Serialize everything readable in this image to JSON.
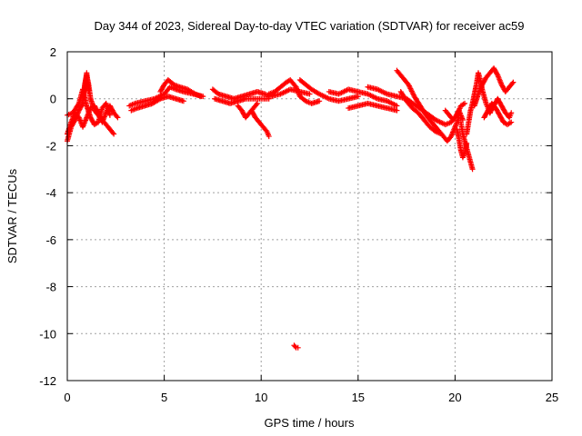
{
  "chart_data": {
    "type": "scatter",
    "title": "Day 344 of 2023, Sidereal Day-to-day VTEC variation (SDTVAR) for receiver ac59",
    "xlabel": "GPS time / hours",
    "ylabel": "SDTVAR / TECUs",
    "xlim": [
      0,
      25
    ],
    "ylim": [
      -12,
      2
    ],
    "xticks": [
      0,
      5,
      10,
      15,
      20,
      25
    ],
    "yticks": [
      -12,
      -10,
      -8,
      -6,
      -4,
      -2,
      0,
      2
    ],
    "xtick_labels": [
      "0",
      "5",
      "10",
      "15",
      "20",
      "25"
    ],
    "ytick_labels": [
      "-12",
      "-10",
      "-8",
      "-6",
      "-4",
      "-2",
      "0",
      "2"
    ],
    "grid": true,
    "marker": "plus",
    "color": "#ff0000",
    "series": [
      {
        "name": "SDTVAR",
        "tracks": [
          [
            [
              0.0,
              -1.8
            ],
            [
              0.2,
              -1.2
            ],
            [
              0.4,
              -0.9
            ],
            [
              0.6,
              -0.5
            ],
            [
              0.8,
              -0.2
            ],
            [
              0.9,
              0.6
            ],
            [
              1.0,
              1.0
            ],
            [
              1.1,
              0.6
            ],
            [
              1.2,
              0.0
            ],
            [
              1.4,
              -0.5
            ],
            [
              1.6,
              -0.7
            ],
            [
              1.8,
              -0.9
            ],
            [
              2.0,
              -1.1
            ],
            [
              2.2,
              -1.3
            ],
            [
              2.4,
              -1.5
            ]
          ],
          [
            [
              0.0,
              -1.5
            ],
            [
              0.2,
              -1.0
            ],
            [
              0.4,
              -0.6
            ],
            [
              0.6,
              -0.8
            ],
            [
              0.8,
              -1.2
            ],
            [
              1.0,
              -0.8
            ],
            [
              1.2,
              -0.4
            ],
            [
              1.4,
              -0.3
            ],
            [
              1.6,
              -0.6
            ],
            [
              1.8,
              -1.0
            ],
            [
              2.0,
              -0.6
            ],
            [
              2.2,
              -0.3
            ],
            [
              2.4,
              -0.6
            ],
            [
              2.6,
              -0.8
            ]
          ],
          [
            [
              0.0,
              -0.7
            ],
            [
              0.3,
              -0.6
            ],
            [
              0.6,
              -0.2
            ],
            [
              0.8,
              0.4
            ],
            [
              1.0,
              -0.3
            ],
            [
              1.2,
              -0.8
            ],
            [
              1.4,
              -1.1
            ],
            [
              1.6,
              -1.0
            ],
            [
              1.8,
              -0.4
            ],
            [
              2.0,
              -0.2
            ],
            [
              2.2,
              -0.7
            ]
          ],
          [
            [
              0.8,
              -0.2
            ],
            [
              0.85,
              0.2
            ],
            [
              0.9,
              0.5
            ],
            [
              0.95,
              0.8
            ],
            [
              1.0,
              1.1
            ],
            [
              1.05,
              0.7
            ],
            [
              1.1,
              0.3
            ]
          ],
          [
            [
              3.2,
              -0.3
            ],
            [
              3.5,
              -0.2
            ],
            [
              4.0,
              -0.1
            ],
            [
              4.5,
              0.0
            ],
            [
              5.0,
              0.2
            ],
            [
              5.3,
              0.5
            ],
            [
              5.6,
              0.4
            ],
            [
              6.0,
              0.3
            ],
            [
              6.5,
              0.2
            ],
            [
              7.0,
              0.1
            ]
          ],
          [
            [
              3.3,
              -0.5
            ],
            [
              3.6,
              -0.4
            ],
            [
              4.0,
              -0.3
            ],
            [
              4.4,
              -0.2
            ],
            [
              4.8,
              0.0
            ],
            [
              5.2,
              0.1
            ],
            [
              5.6,
              0.0
            ],
            [
              6.0,
              -0.1
            ]
          ],
          [
            [
              4.8,
              0.3
            ],
            [
              5.0,
              0.6
            ],
            [
              5.2,
              0.8
            ],
            [
              5.5,
              0.6
            ],
            [
              5.8,
              0.5
            ],
            [
              6.2,
              0.4
            ],
            [
              6.6,
              0.2
            ],
            [
              6.9,
              0.1
            ]
          ],
          [
            [
              7.5,
              0.4
            ],
            [
              7.8,
              0.2
            ],
            [
              8.2,
              0.1
            ],
            [
              8.6,
              0.0
            ],
            [
              9.0,
              0.1
            ],
            [
              9.4,
              0.2
            ],
            [
              9.8,
              0.3
            ],
            [
              10.2,
              0.2
            ],
            [
              10.5,
              0.1
            ],
            [
              11.0,
              0.2
            ],
            [
              11.5,
              0.4
            ],
            [
              12.0,
              0.3
            ],
            [
              12.5,
              0.2
            ]
          ],
          [
            [
              7.6,
              0.0
            ],
            [
              8.0,
              -0.1
            ],
            [
              8.4,
              -0.2
            ],
            [
              8.8,
              -0.1
            ],
            [
              9.2,
              0.0
            ],
            [
              9.6,
              0.0
            ],
            [
              10.0,
              0.0
            ],
            [
              10.4,
              0.0
            ]
          ],
          [
            [
              8.8,
              -0.3
            ],
            [
              9.0,
              -0.5
            ],
            [
              9.2,
              -0.8
            ],
            [
              9.4,
              -0.6
            ],
            [
              9.6,
              -0.4
            ],
            [
              9.8,
              -0.2
            ]
          ],
          [
            [
              9.5,
              -0.5
            ],
            [
              9.7,
              -0.8
            ],
            [
              9.9,
              -1.0
            ],
            [
              10.1,
              -1.2
            ],
            [
              10.3,
              -1.4
            ],
            [
              10.4,
              -1.6
            ]
          ],
          [
            [
              10.4,
              0.2
            ],
            [
              10.7,
              0.3
            ],
            [
              11.0,
              0.5
            ],
            [
              11.3,
              0.7
            ],
            [
              11.5,
              0.8
            ],
            [
              11.8,
              0.5
            ],
            [
              12.0,
              0.1
            ],
            [
              12.3,
              -0.1
            ],
            [
              12.6,
              -0.2
            ],
            [
              13.0,
              -0.1
            ]
          ],
          [
            [
              12.0,
              0.8
            ],
            [
              12.3,
              0.6
            ],
            [
              12.6,
              0.4
            ],
            [
              13.0,
              0.2
            ],
            [
              13.5,
              0.0
            ],
            [
              14.0,
              -0.1
            ],
            [
              14.5,
              0.0
            ],
            [
              15.0,
              0.1
            ]
          ],
          [
            [
              13.5,
              0.3
            ],
            [
              14.0,
              0.2
            ],
            [
              14.5,
              0.4
            ],
            [
              15.0,
              0.3
            ],
            [
              15.5,
              0.2
            ],
            [
              16.0,
              0.0
            ],
            [
              16.5,
              -0.1
            ],
            [
              17.0,
              -0.3
            ]
          ],
          [
            [
              14.5,
              -0.4
            ],
            [
              15.0,
              -0.3
            ],
            [
              15.5,
              -0.2
            ],
            [
              16.0,
              -0.3
            ],
            [
              16.5,
              -0.4
            ],
            [
              17.0,
              -0.5
            ]
          ],
          [
            [
              15.5,
              0.5
            ],
            [
              16.0,
              0.4
            ],
            [
              16.5,
              0.2
            ],
            [
              17.0,
              0.1
            ],
            [
              17.5,
              0.0
            ],
            [
              18.0,
              -0.3
            ],
            [
              18.5,
              -0.6
            ],
            [
              19.0,
              -0.9
            ],
            [
              19.5,
              -1.1
            ],
            [
              19.8,
              -1.0
            ],
            [
              20.0,
              -0.8
            ],
            [
              20.2,
              -0.5
            ],
            [
              20.4,
              -0.9
            ]
          ],
          [
            [
              17.0,
              1.2
            ],
            [
              17.3,
              0.9
            ],
            [
              17.6,
              0.6
            ],
            [
              17.9,
              0.1
            ],
            [
              18.2,
              -0.3
            ],
            [
              18.5,
              -0.7
            ],
            [
              18.8,
              -1.0
            ],
            [
              19.1,
              -1.3
            ],
            [
              19.4,
              -1.6
            ],
            [
              19.6,
              -1.8
            ],
            [
              19.8,
              -1.6
            ],
            [
              20.0,
              -1.2
            ],
            [
              20.2,
              -0.8
            ]
          ],
          [
            [
              17.2,
              0.3
            ],
            [
              17.5,
              -0.1
            ],
            [
              17.8,
              -0.4
            ],
            [
              18.1,
              -0.6
            ],
            [
              18.4,
              -0.9
            ],
            [
              18.7,
              -1.2
            ],
            [
              19.0,
              -1.4
            ],
            [
              19.3,
              -1.5
            ]
          ],
          [
            [
              19.5,
              -0.5
            ],
            [
              19.7,
              -0.7
            ],
            [
              19.9,
              -0.9
            ],
            [
              20.1,
              -0.7
            ],
            [
              20.3,
              -0.3
            ],
            [
              20.5,
              -0.2
            ]
          ],
          [
            [
              20.3,
              -1.0
            ],
            [
              20.4,
              -1.5
            ],
            [
              20.5,
              -1.8
            ],
            [
              20.6,
              -2.1
            ],
            [
              20.7,
              -2.4
            ],
            [
              20.8,
              -2.7
            ],
            [
              20.9,
              -3.0
            ]
          ],
          [
            [
              20.1,
              -1.3
            ],
            [
              20.2,
              -1.7
            ],
            [
              20.3,
              -2.2
            ],
            [
              20.4,
              -2.5
            ],
            [
              20.5,
              -2.3
            ],
            [
              20.6,
              -1.9
            ]
          ],
          [
            [
              20.6,
              -1.5
            ],
            [
              20.7,
              -1.0
            ],
            [
              20.8,
              -0.5
            ],
            [
              20.9,
              -0.2
            ],
            [
              21.0,
              0.2
            ],
            [
              21.1,
              0.6
            ],
            [
              21.2,
              1.1
            ],
            [
              21.3,
              0.8
            ],
            [
              21.4,
              0.4
            ],
            [
              21.5,
              0.1
            ],
            [
              21.6,
              -0.2
            ],
            [
              21.7,
              -0.4
            ],
            [
              21.8,
              -0.6
            ]
          ],
          [
            [
              21.0,
              -0.3
            ],
            [
              21.2,
              0.2
            ],
            [
              21.4,
              0.6
            ],
            [
              21.6,
              0.9
            ],
            [
              21.8,
              1.1
            ],
            [
              22.0,
              1.3
            ],
            [
              22.2,
              1.0
            ],
            [
              22.4,
              0.6
            ],
            [
              22.6,
              0.3
            ],
            [
              22.8,
              0.5
            ],
            [
              23.0,
              0.7
            ]
          ],
          [
            [
              21.5,
              -0.8
            ],
            [
              21.7,
              -0.5
            ],
            [
              21.9,
              -0.2
            ],
            [
              22.1,
              -0.4
            ],
            [
              22.3,
              -0.7
            ],
            [
              22.5,
              -1.0
            ],
            [
              22.7,
              -1.1
            ],
            [
              22.9,
              -1.0
            ]
          ],
          [
            [
              21.8,
              -0.6
            ],
            [
              22.0,
              -0.3
            ],
            [
              22.2,
              0.0
            ],
            [
              22.4,
              -0.3
            ],
            [
              22.6,
              -0.6
            ],
            [
              22.8,
              -0.8
            ],
            [
              22.9,
              -0.6
            ]
          ],
          [
            [
              11.7,
              -10.5
            ],
            [
              11.8,
              -10.6
            ],
            [
              11.9,
              -10.6
            ]
          ]
        ]
      }
    ]
  }
}
